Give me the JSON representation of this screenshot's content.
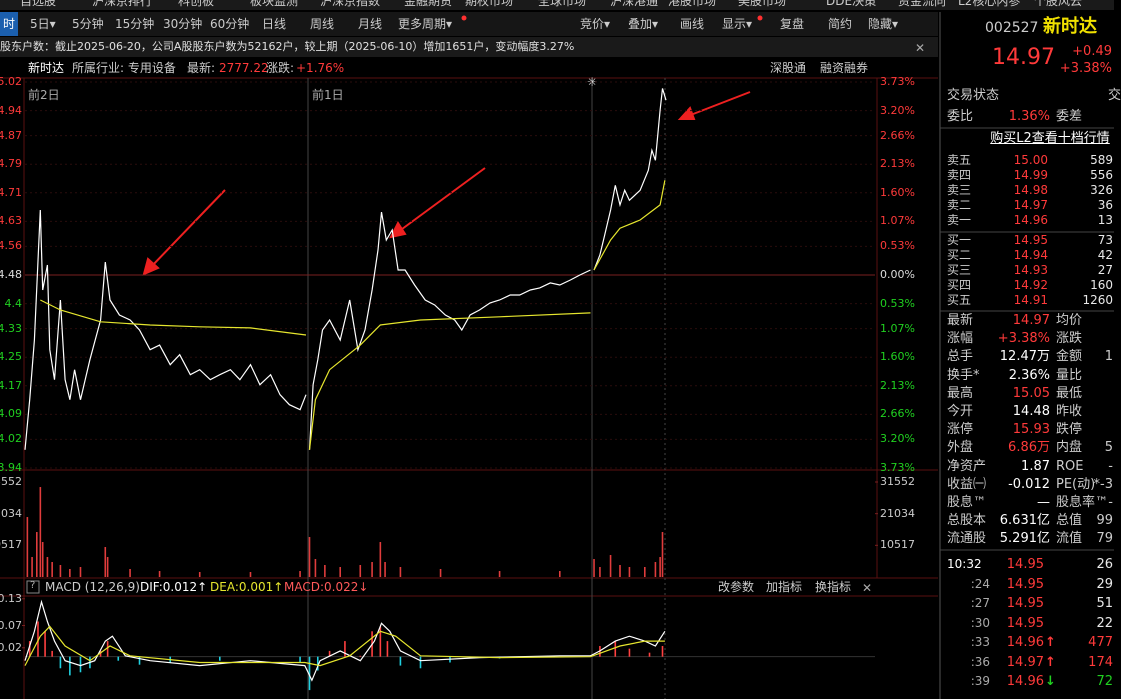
{
  "top_menu": [
    "自选股",
    "沪深京排行",
    "科创板",
    "板块监测",
    "沪深京指数",
    "金融期货",
    "期权市场",
    "全球市场",
    "沪深港通",
    "港股市场",
    "美股市场",
    "DDE决策",
    "资金流向",
    "L2核心内参",
    "个股风云"
  ],
  "toolbar": {
    "left": [
      "时",
      "5日▾",
      "5分钟",
      "15分钟",
      "30分钟",
      "60分钟",
      "日线",
      "周线",
      "月线",
      "更多周期▾"
    ],
    "right": [
      "竞价▾",
      "叠加▾",
      "画线",
      "显示▾",
      "复盘",
      "简约",
      "隐藏▾"
    ]
  },
  "info_bar": "股东户数：截止2025-06-20，公司A股股东户数为52162户，较上期（2025-06-10）增加1651户，变动幅度3.27%",
  "chart_header": {
    "name": "新时达",
    "industry": "所属行业: 专用设备",
    "latest_label": "最新:",
    "latest": "2777.22",
    "change_label": "涨跌:",
    "change": "+1.76%",
    "links": [
      "深股通",
      "融资融券"
    ]
  },
  "day_labels": [
    "前2日",
    "前1日"
  ],
  "macd_header": {
    "help": "?",
    "title": "MACD (12,26,9)",
    "dif": "DIF:0.012↑",
    "dea": "DEA:0.001↑",
    "macd": "MACD:0.022↓",
    "buttons": [
      "改参数",
      "加指标",
      "换指标"
    ]
  },
  "chart_data": [
    {
      "type": "line",
      "xlim": [
        0,
        720
      ],
      "ylim": [
        3.94,
        5.02
      ],
      "yticks": [
        5.02,
        4.94,
        4.87,
        4.79,
        4.71,
        4.63,
        4.56,
        4.48,
        4.4,
        4.33,
        4.25,
        4.17,
        4.09,
        4.02,
        3.94
      ],
      "right_labels": [
        "3.73%",
        "3.20%",
        "2.66%",
        "2.13%",
        "1.60%",
        "1.07%",
        "0.53%",
        "0.00%",
        "0.53%",
        "1.07%",
        "1.60%",
        "2.13%",
        "2.66%",
        "3.20%",
        "3.73%"
      ],
      "up_color": "#ff3a3a",
      "flat_color": "#dddddd",
      "down_color": "#20d020",
      "grid": true,
      "series": [
        {
          "color": "#ffffff",
          "x": [
            0,
            4,
            8,
            13,
            15,
            19,
            21,
            25,
            30,
            34,
            38,
            42,
            47,
            55,
            64,
            68,
            72,
            80,
            89,
            97,
            106,
            114,
            123,
            131,
            140,
            148,
            157,
            165,
            174,
            182,
            191,
            199,
            208,
            216,
            224,
            233,
            238,
            239,
            241,
            244,
            248,
            252,
            258,
            267,
            275,
            282,
            288,
            294,
            299,
            302,
            306,
            311,
            316,
            322,
            330,
            339,
            347,
            356,
            364,
            370,
            377,
            385,
            394,
            402,
            411,
            419,
            428,
            436,
            445,
            453,
            462,
            470,
            479,
            480,
            482,
            487,
            491,
            496,
            500,
            504,
            508,
            512,
            521,
            528,
            531,
            534,
            538,
            540,
            543
          ],
          "values": [
            3.991,
            4.131,
            4.298,
            4.662,
            4.438,
            4.508,
            4.271,
            4.187,
            4.41,
            4.187,
            4.131,
            4.215,
            4.131,
            4.243,
            4.354,
            4.516,
            4.41,
            4.368,
            4.354,
            4.326,
            4.271,
            4.284,
            4.229,
            4.257,
            4.201,
            4.215,
            4.187,
            4.201,
            4.215,
            4.187,
            4.229,
            4.173,
            4.201,
            4.145,
            4.117,
            4.103,
            4.145,
            null,
            3.991,
            4.173,
            4.243,
            4.326,
            4.354,
            4.298,
            4.41,
            4.271,
            4.326,
            4.438,
            4.55,
            4.656,
            4.578,
            4.606,
            4.494,
            4.494,
            4.452,
            4.41,
            4.396,
            4.368,
            4.354,
            4.326,
            4.368,
            4.382,
            4.402,
            4.41,
            4.424,
            4.424,
            4.438,
            4.444,
            4.458,
            4.452,
            4.466,
            4.48,
            4.494,
            null,
            4.494,
            4.536,
            4.592,
            4.662,
            4.731,
            4.676,
            4.717,
            4.689,
            4.717,
            4.773,
            4.829,
            4.801,
            4.941,
            5.002,
            4.969
          ]
        },
        {
          "color": "#e6e62e",
          "x": [
            13,
            30,
            64,
            106,
            148,
            191,
            238,
            239,
            241,
            246,
            258,
            284,
            301,
            335,
            402,
            479,
            480,
            482,
            496,
            504,
            521,
            538,
            542
          ],
          "values": [
            4.41,
            4.382,
            4.349,
            4.34,
            4.335,
            4.332,
            4.312,
            null,
            3.991,
            4.131,
            4.215,
            4.284,
            4.34,
            4.354,
            4.363,
            4.374,
            null,
            4.494,
            4.578,
            4.611,
            4.634,
            4.676,
            4.745
          ]
        }
      ]
    },
    {
      "type": "bar",
      "xlim": [
        0,
        720
      ],
      "ylim": [
        0,
        31552
      ],
      "yticks": [
        31552,
        21034,
        10517
      ],
      "left_labels": [
        "3552",
        "1034",
        "0517"
      ],
      "color": "#e03c3c",
      "x": [
        2,
        6,
        10,
        13,
        15,
        19,
        23,
        30,
        38,
        47,
        68,
        70,
        89,
        114,
        148,
        191,
        233,
        241,
        246,
        254,
        267,
        284,
        294,
        301,
        305,
        318,
        352,
        402,
        453,
        482,
        487,
        496,
        504,
        512,
        525,
        534,
        538,
        540
      ],
      "values": [
        19920,
        6640,
        14940,
        29880,
        11620,
        6640,
        4980,
        3984,
        2656,
        3320,
        9960,
        6640,
        2656,
        1992,
        1660,
        1660,
        1992,
        13280,
        5976,
        3984,
        3320,
        3984,
        4980,
        11620,
        4980,
        3320,
        2656,
        1992,
        1992,
        5976,
        3320,
        7304,
        3984,
        3320,
        3320,
        4980,
        6640,
        14940
      ]
    },
    {
      "type": "line",
      "xlim": [
        0,
        720
      ],
      "ylim": [
        -0.095,
        0.134
      ],
      "yticks": [
        0.13,
        0.07,
        0.02
      ],
      "up_color": "#ff4040",
      "down_color": "#20d0e0",
      "series": [
        {
          "type": "bar",
          "x": [
            4,
            11,
            17,
            23,
            30,
            38,
            47,
            55,
            64,
            70,
            79,
            97,
            123,
            165,
            233,
            241,
            248,
            258,
            271,
            284,
            294,
            301,
            307,
            318,
            335,
            360,
            402,
            487,
            500,
            512,
            529,
            540
          ],
          "values": [
            0.035,
            0.079,
            0.057,
            0.013,
            -0.026,
            -0.042,
            -0.035,
            -0.026,
            0.013,
            0.035,
            -0.009,
            -0.018,
            -0.013,
            -0.009,
            -0.013,
            -0.075,
            -0.031,
            0.013,
            0.035,
            0.002,
            0.057,
            0.068,
            0.035,
            -0.02,
            -0.026,
            -0.013,
            -0.004,
            0.024,
            0.035,
            0.018,
            0.009,
            0.024
          ]
        },
        {
          "color": "#ffffff",
          "x": [
            0,
            8,
            14,
            19,
            25,
            34,
            47,
            59,
            68,
            74,
            85,
            106,
            148,
            191,
            237,
            243,
            250,
            267,
            284,
            296,
            302,
            309,
            318,
            335,
            385,
            453,
            479,
            487,
            500,
            512,
            525,
            534,
            542
          ],
          "values": [
            -0.009,
            0.057,
            0.123,
            0.079,
            0.035,
            -0.009,
            -0.02,
            -0.009,
            0.035,
            0.046,
            0.002,
            -0.009,
            -0.02,
            -0.009,
            -0.02,
            -0.053,
            -0.009,
            0.013,
            -0.009,
            0.035,
            0.075,
            0.057,
            0.013,
            -0.009,
            -0.002,
            0.002,
            0.002,
            0.013,
            0.035,
            0.046,
            0.035,
            0.024,
            0.057
          ]
        },
        {
          "color": "#e6e62e",
          "x": [
            0,
            13,
            21,
            34,
            55,
            72,
            89,
            148,
            237,
            250,
            275,
            301,
            314,
            335,
            402,
            479,
            504,
            525,
            542
          ],
          "values": [
            -0.02,
            0.046,
            0.068,
            0.024,
            -0.009,
            0.024,
            0.002,
            -0.013,
            -0.013,
            -0.02,
            0.002,
            0.057,
            0.046,
            0.002,
            -0.002,
            0.0,
            0.024,
            0.035,
            0.035
          ]
        }
      ]
    }
  ],
  "quote": {
    "code": "002527",
    "name": "新时达",
    "price": "14.97",
    "change": "+0.49",
    "change_pct": "+3.38%",
    "status": "交易状态",
    "status_value": "交",
    "ratio_label": "委比",
    "ratio": "1.36%",
    "diff_label": "委差",
    "l2_link": "购买L2查看十档行情",
    "book": [
      [
        "卖五",
        "15.00",
        "589"
      ],
      [
        "卖四",
        "14.99",
        "556"
      ],
      [
        "卖三",
        "14.98",
        "326"
      ],
      [
        "卖二",
        "14.97",
        "36"
      ],
      [
        "卖一",
        "14.96",
        "13"
      ],
      [
        "买一",
        "14.95",
        "73"
      ],
      [
        "买二",
        "14.94",
        "42"
      ],
      [
        "买三",
        "14.93",
        "27"
      ],
      [
        "买四",
        "14.92",
        "160"
      ],
      [
        "买五",
        "14.91",
        "1260"
      ]
    ],
    "stats": [
      {
        "l": "最新",
        "v": "14.97",
        "c": "#ff3a3a",
        "l2": "均价"
      },
      {
        "l": "涨幅",
        "v": "+3.38%",
        "c": "#ff3a3a",
        "l2": "涨跌"
      },
      {
        "l": "总手",
        "v": "12.47万",
        "c": "#ffffff",
        "l2": "金额",
        "v2": "1"
      },
      {
        "l": "换手*",
        "v": "2.36%",
        "c": "#ffffff",
        "l2": "量比"
      },
      {
        "l": "最高",
        "v": "15.05",
        "c": "#ff3a3a",
        "l2": "最低"
      },
      {
        "l": "今开",
        "v": "14.48",
        "c": "#ffffff",
        "l2": "昨收"
      },
      {
        "l": "涨停",
        "v": "15.93",
        "c": "#ff3a3a",
        "l2": "跌停"
      },
      {
        "l": "外盘",
        "v": "6.86万",
        "c": "#ff3a3a",
        "l2": "内盘",
        "v2": "5"
      },
      {
        "l": "净资产",
        "v": "1.87",
        "c": "#ffffff",
        "l2": "ROE",
        "v2": "-"
      },
      {
        "l": "收益㈠",
        "v": "-0.012",
        "c": "#ffffff",
        "l2": "PE(动)",
        "v2": "*-3"
      },
      {
        "l": "股息™",
        "v": "—",
        "c": "#ffffff",
        "l2": "股息率™",
        "v2": "-"
      },
      {
        "l": "总股本",
        "v": "6.631亿",
        "c": "#ffffff",
        "l2": "总值",
        "v2": "99"
      },
      {
        "l": "流通股",
        "v": "5.291亿",
        "c": "#ffffff",
        "l2": "流值",
        "v2": "79"
      }
    ],
    "ticks": [
      {
        "t": "10:32",
        "p": "14.95",
        "v": "26"
      },
      {
        "t": ":24",
        "p": "14.95",
        "v": "29"
      },
      {
        "t": ":27",
        "p": "14.95",
        "v": "51"
      },
      {
        "t": ":30",
        "p": "14.95",
        "v": "22"
      },
      {
        "t": ":33",
        "p": "14.96",
        "a": "↑",
        "v": "477"
      },
      {
        "t": ":36",
        "p": "14.97",
        "a": "↑",
        "v": "174"
      },
      {
        "t": ":39",
        "p": "14.96",
        "a": "↓",
        "v": "72"
      }
    ]
  }
}
